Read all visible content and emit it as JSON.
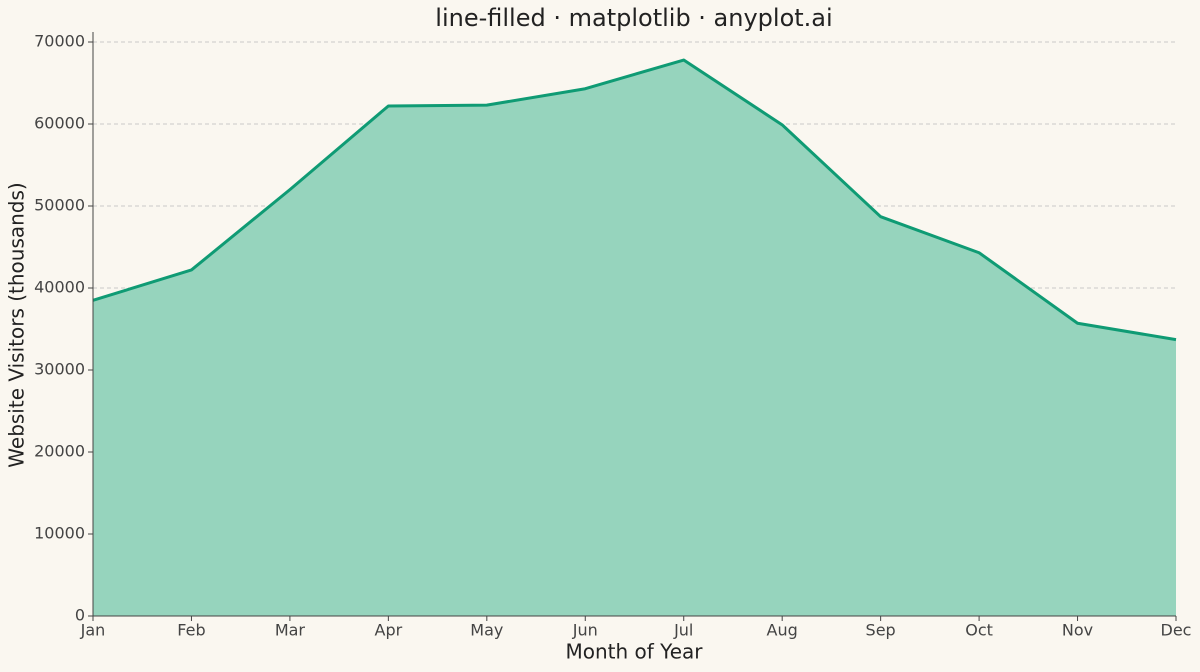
{
  "chart_data": {
    "type": "area",
    "title": "line-filled · matplotlib · anyplot.ai",
    "x_label": "Month of Year",
    "y_label": "Website Visitors (thousands)",
    "categories": [
      "Jan",
      "Feb",
      "Mar",
      "Apr",
      "May",
      "Jun",
      "Jul",
      "Aug",
      "Sep",
      "Oct",
      "Nov",
      "Dec"
    ],
    "values": [
      38500,
      42200,
      52000,
      62200,
      62300,
      64300,
      67800,
      59900,
      48700,
      44300,
      35700,
      33700
    ],
    "color": "#0f9b74",
    "fill_color": "#96d4bd",
    "ylim": [
      0,
      70000
    ],
    "yticks": [
      0,
      10000,
      20000,
      30000,
      40000,
      50000,
      60000,
      70000
    ],
    "grid": true
  }
}
